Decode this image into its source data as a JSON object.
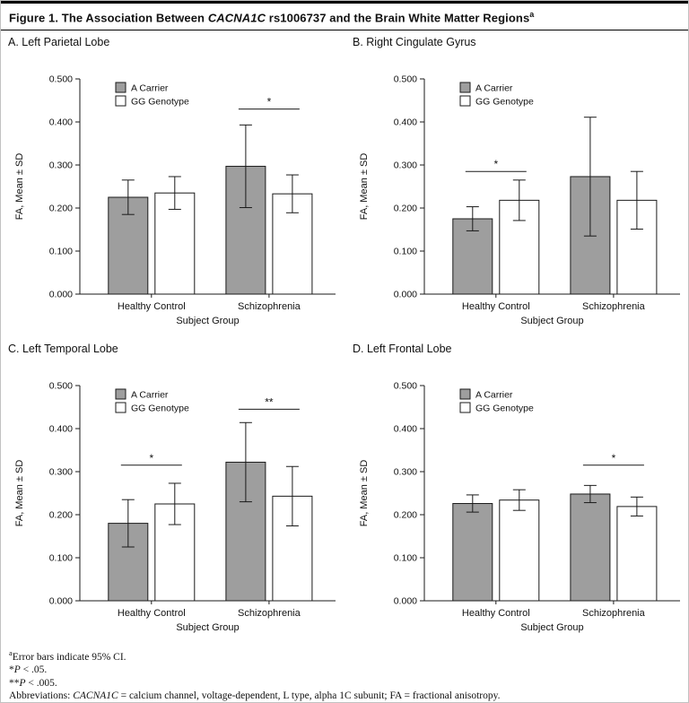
{
  "figure_title": {
    "prefix": "Figure 1. The Association Between ",
    "gene": "CACNA1C",
    "suffix": " rs1006737 and the Brain White Matter Regions",
    "superscript": "a"
  },
  "colors": {
    "a_carrier_fill": "#9e9e9e",
    "gg_genotype_fill": "#ffffff",
    "line": "#1a1a1a",
    "background": "#ffffff"
  },
  "chart_data": [
    {
      "type": "bar",
      "panel_label": "A. Left Parietal Lobe",
      "categories": [
        "Healthy Control",
        "Schizophrenia"
      ],
      "series": [
        {
          "name": "A Carrier",
          "fill": "#9e9e9e",
          "values": [
            0.225,
            0.297
          ],
          "ci": [
            0.04,
            0.096
          ]
        },
        {
          "name": "GG Genotype",
          "fill": "#ffffff",
          "values": [
            0.235,
            0.233
          ],
          "ci": [
            0.038,
            0.044
          ]
        }
      ],
      "significance": [
        {
          "category": 1,
          "label": "*",
          "y": 0.43
        }
      ],
      "ylabel": "FA, Mean ± SD",
      "xlabel": "Subject Group",
      "ylim": [
        0,
        0.5
      ],
      "yticks": [
        "0.000",
        "0.100",
        "0.200",
        "0.300",
        "0.400",
        "0.500"
      ],
      "legend_position": "top-left",
      "grid": false
    },
    {
      "type": "bar",
      "panel_label": "B. Right Cingulate Gyrus",
      "categories": [
        "Healthy Control",
        "Schizophrenia"
      ],
      "series": [
        {
          "name": "A Carrier",
          "fill": "#9e9e9e",
          "values": [
            0.175,
            0.273
          ],
          "ci": [
            0.028,
            0.138
          ]
        },
        {
          "name": "GG Genotype",
          "fill": "#ffffff",
          "values": [
            0.218,
            0.218
          ],
          "ci": [
            0.047,
            0.067
          ]
        }
      ],
      "significance": [
        {
          "category": 0,
          "label": "*",
          "y": 0.285
        }
      ],
      "ylabel": "FA, Mean ± SD",
      "xlabel": "Subject Group",
      "ylim": [
        0,
        0.5
      ],
      "yticks": [
        "0.000",
        "0.100",
        "0.200",
        "0.300",
        "0.400",
        "0.500"
      ],
      "legend_position": "top-left",
      "grid": false
    },
    {
      "type": "bar",
      "panel_label": "C. Left Temporal Lobe",
      "categories": [
        "Healthy Control",
        "Schizophrenia"
      ],
      "series": [
        {
          "name": "A Carrier",
          "fill": "#9e9e9e",
          "values": [
            0.18,
            0.322
          ],
          "ci": [
            0.055,
            0.092
          ]
        },
        {
          "name": "GG Genotype",
          "fill": "#ffffff",
          "values": [
            0.225,
            0.243
          ],
          "ci": [
            0.048,
            0.069
          ]
        }
      ],
      "significance": [
        {
          "category": 0,
          "label": "*",
          "y": 0.315
        },
        {
          "category": 1,
          "label": "**",
          "y": 0.445
        }
      ],
      "ylabel": "FA, Mean ± SD",
      "xlabel": "Subject Group",
      "ylim": [
        0,
        0.5
      ],
      "yticks": [
        "0.000",
        "0.100",
        "0.200",
        "0.300",
        "0.400",
        "0.500"
      ],
      "legend_position": "top-left",
      "grid": false
    },
    {
      "type": "bar",
      "panel_label": "D. Left Frontal Lobe",
      "categories": [
        "Healthy Control",
        "Schizophrenia"
      ],
      "series": [
        {
          "name": "A Carrier",
          "fill": "#9e9e9e",
          "values": [
            0.226,
            0.248
          ],
          "ci": [
            0.02,
            0.02
          ]
        },
        {
          "name": "GG Genotype",
          "fill": "#ffffff",
          "values": [
            0.234,
            0.219
          ],
          "ci": [
            0.024,
            0.022
          ]
        }
      ],
      "significance": [
        {
          "category": 1,
          "label": "*",
          "y": 0.315
        }
      ],
      "ylabel": "FA, Mean ± SD",
      "xlabel": "Subject Group",
      "ylim": [
        0,
        0.5
      ],
      "yticks": [
        "0.000",
        "0.100",
        "0.200",
        "0.300",
        "0.400",
        "0.500"
      ],
      "legend_position": "top-left",
      "grid": false
    }
  ],
  "footnotes": {
    "ci_sup": "a",
    "ci_text": "Error bars indicate 95% CI.",
    "p05_star": "*",
    "p05_p": "P",
    "p05_rest": " < .05.",
    "p005_star": "**",
    "p005_p": "P",
    "p005_rest": " < .005.",
    "abbr_label": "Abbreviations: ",
    "abbr_gene": "CACNA1C",
    "abbr_rest": " = calcium channel, voltage-dependent, L type, alpha 1C subunit; FA = fractional anisotropy."
  }
}
